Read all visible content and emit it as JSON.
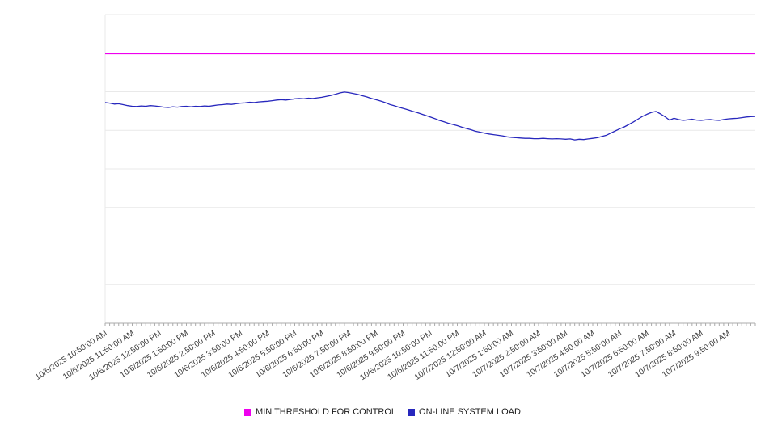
{
  "legend": [
    {
      "label": "MIN THRESHOLD FOR CONTROL",
      "color": "#ee00ee"
    },
    {
      "label": "ON-LINE SYSTEM LOAD",
      "color": "#2727bd"
    }
  ],
  "chart_data": {
    "type": "line",
    "title": "",
    "xlabel": "",
    "ylabel": "",
    "ylim": [
      0,
      100
    ],
    "gridline_step": 12.5,
    "grid": "horizontal",
    "legend_position": "bottom",
    "x_minor_ticks_per_hour": 6,
    "x_tick_labels": [
      "10/6/2025 10:50:00 AM",
      "10/6/2025 11:50:00 AM",
      "10/6/2025 12:50:00 PM",
      "10/6/2025 1:50:00 PM",
      "10/6/2025 2:50:00 PM",
      "10/6/2025 3:50:00 PM",
      "10/6/2025 4:50:00 PM",
      "10/6/2025 5:50:00 PM",
      "10/6/2025 6:50:00 PM",
      "10/6/2025 7:50:00 PM",
      "10/6/2025 8:50:00 PM",
      "10/6/2025 9:50:00 PM",
      "10/6/2025 10:50:00 PM",
      "10/6/2025 11:50:00 PM",
      "10/7/2025 12:50:00 AM",
      "10/7/2025 1:50:00 AM",
      "10/7/2025 2:50:00 AM",
      "10/7/2025 3:50:00 AM",
      "10/7/2025 4:50:00 AM",
      "10/7/2025 5:50:00 AM",
      "10/7/2025 6:50:00 AM",
      "10/7/2025 7:50:00 AM",
      "10/7/2025 8:50:00 AM",
      "10/7/2025 9:50:00 AM"
    ],
    "series": [
      {
        "name": "MIN THRESHOLD FOR CONTROL",
        "color": "#ee00ee",
        "style": "constant-line",
        "constant_value": 87.4
      },
      {
        "name": "ON-LINE SYSTEM LOAD",
        "color": "#2727bd",
        "style": "line",
        "sample_interval_minutes": 10,
        "values": [
          71.5,
          71.3,
          71.0,
          71.1,
          70.8,
          70.5,
          70.3,
          70.2,
          70.4,
          70.3,
          70.5,
          70.4,
          70.2,
          70.0,
          69.9,
          70.1,
          70.0,
          70.2,
          70.3,
          70.1,
          70.3,
          70.2,
          70.4,
          70.3,
          70.5,
          70.7,
          70.8,
          71.0,
          70.9,
          71.1,
          71.3,
          71.4,
          71.6,
          71.5,
          71.7,
          71.8,
          71.9,
          72.1,
          72.3,
          72.4,
          72.3,
          72.5,
          72.7,
          72.8,
          72.7,
          72.9,
          72.8,
          73.0,
          73.2,
          73.5,
          73.8,
          74.2,
          74.6,
          74.9,
          74.7,
          74.4,
          74.1,
          73.7,
          73.3,
          72.8,
          72.4,
          72.0,
          71.5,
          70.9,
          70.5,
          70.0,
          69.6,
          69.2,
          68.7,
          68.3,
          67.8,
          67.3,
          66.8,
          66.3,
          65.7,
          65.3,
          64.8,
          64.4,
          64.0,
          63.5,
          63.1,
          62.7,
          62.2,
          61.9,
          61.6,
          61.3,
          61.1,
          60.9,
          60.7,
          60.4,
          60.2,
          60.1,
          60.0,
          59.9,
          59.9,
          59.8,
          59.8,
          59.9,
          59.8,
          59.7,
          59.8,
          59.7,
          59.6,
          59.7,
          59.4,
          59.6,
          59.5,
          59.7,
          59.9,
          60.1,
          60.5,
          60.9,
          61.6,
          62.3,
          63.0,
          63.6,
          64.4,
          65.2,
          66.1,
          67.0,
          67.7,
          68.3,
          68.6,
          67.8,
          66.9,
          65.8,
          66.4,
          66.0,
          65.7,
          65.9,
          66.1,
          65.8,
          65.7,
          65.9,
          66.0,
          65.8,
          65.7,
          66.0,
          66.2,
          66.3,
          66.4,
          66.6,
          66.8,
          66.9,
          67.0
        ]
      }
    ]
  }
}
